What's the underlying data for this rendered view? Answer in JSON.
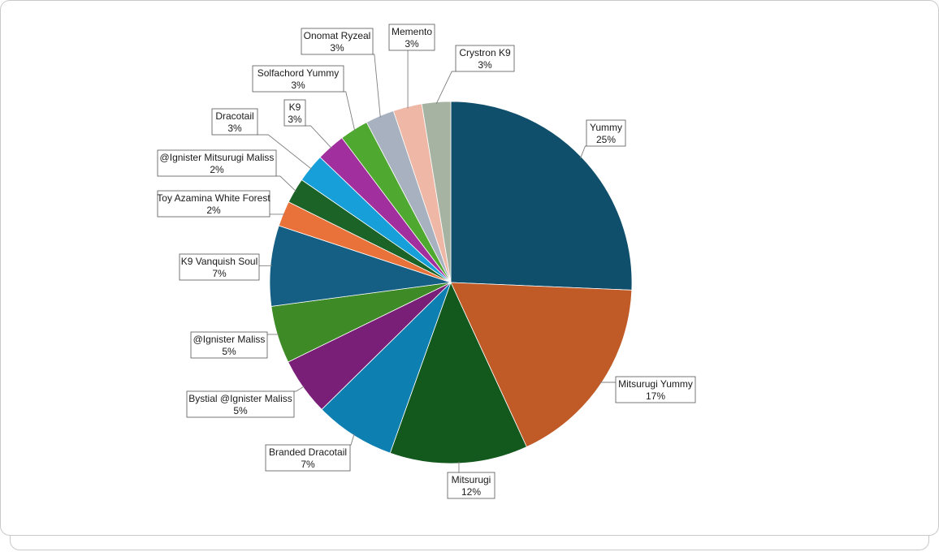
{
  "chart_data": {
    "type": "pie",
    "title": "",
    "start_angle_deg": 0,
    "direction": "clockwise",
    "slices": [
      {
        "label": "Yummy",
        "pct_label": "25%",
        "value": 25,
        "color": "#0f4f6c"
      },
      {
        "label": "Mitsurugi Yummy",
        "pct_label": "17%",
        "value": 17,
        "color": "#c05a26"
      },
      {
        "label": "Mitsurugi",
        "pct_label": "12%",
        "value": 12,
        "color": "#13591e"
      },
      {
        "label": "Branded Dracotail",
        "pct_label": "7%",
        "value": 7,
        "color": "#0d7fb0"
      },
      {
        "label": "Bystial @Ignister Maliss",
        "pct_label": "5%",
        "value": 5,
        "color": "#7a1f78"
      },
      {
        "label": "@Ignister Maliss",
        "pct_label": "5%",
        "value": 5,
        "color": "#3d8a27"
      },
      {
        "label": "K9 Vanquish Soul",
        "pct_label": "7%",
        "value": 7,
        "color": "#155f85"
      },
      {
        "label": "Toy Azamina White Forest",
        "pct_label": "2%",
        "value": 2.2,
        "color": "#e8723a"
      },
      {
        "label": "@Ignister Mitsurugi Maliss",
        "pct_label": "2%",
        "value": 2.2,
        "color": "#1b6326"
      },
      {
        "label": "Dracotail",
        "pct_label": "3%",
        "value": 2.5,
        "color": "#179fd9"
      },
      {
        "label": "K9",
        "pct_label": "3%",
        "value": 2.5,
        "color": "#a12f9d"
      },
      {
        "label": "Solfachord Yummy",
        "pct_label": "3%",
        "value": 2.5,
        "color": "#4fa82f"
      },
      {
        "label": "Onomat Ryzeal",
        "pct_label": "3%",
        "value": 2.5,
        "color": "#a7b1bf"
      },
      {
        "label": "Memento",
        "pct_label": "3%",
        "value": 2.5,
        "color": "#efb7a6"
      },
      {
        "label": "Crystron K9",
        "pct_label": "3%",
        "value": 2.5,
        "color": "#a6b3a2"
      }
    ]
  }
}
